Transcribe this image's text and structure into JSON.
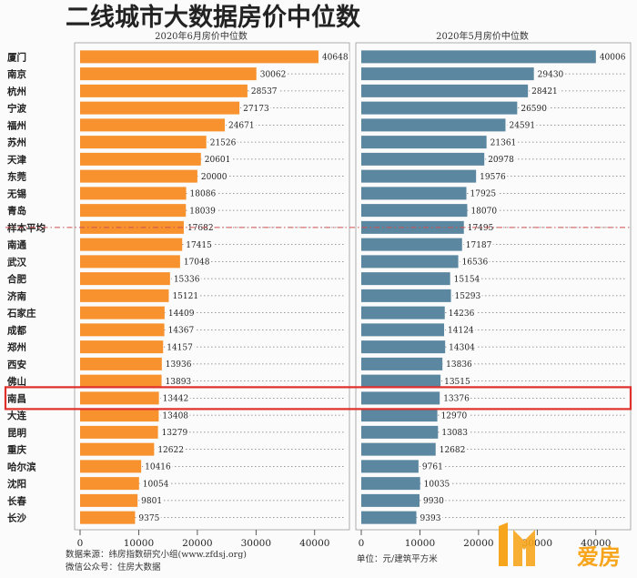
{
  "chart_data": {
    "type": "bar",
    "title": "二线城市大数据房价中位数",
    "categories": [
      "厦门",
      "南京",
      "杭州",
      "宁波",
      "福州",
      "苏州",
      "天津",
      "东莞",
      "无锡",
      "青岛",
      "样本平均",
      "南通",
      "武汉",
      "合肥",
      "济南",
      "石家庄",
      "成都",
      "郑州",
      "西安",
      "佛山",
      "南昌",
      "大连",
      "昆明",
      "重庆",
      "哈尔滨",
      "沈阳",
      "长春",
      "长沙"
    ],
    "series": [
      {
        "name": "2020年6月房价中位数",
        "color": "#f7922e",
        "values": [
          40648,
          30062,
          28537,
          27173,
          24671,
          21526,
          20601,
          20000,
          18086,
          18039,
          17682,
          17415,
          17048,
          15336,
          15121,
          14409,
          14367,
          14157,
          13936,
          13893,
          13442,
          13408,
          13279,
          12622,
          10416,
          10054,
          9801,
          9375
        ]
      },
      {
        "name": "2020年5月房价中位数",
        "color": "#5b87a0",
        "values": [
          40006,
          29430,
          28421,
          26590,
          24591,
          21361,
          20978,
          19576,
          17925,
          18070,
          17495,
          17187,
          16536,
          15154,
          15293,
          14236,
          14124,
          14304,
          13836,
          13515,
          13376,
          12970,
          13083,
          12682,
          9761,
          10035,
          9930,
          9393
        ]
      }
    ],
    "xlim": [
      0,
      45000
    ],
    "xticks": [
      0,
      10000,
      20000,
      30000,
      40000
    ],
    "average_category": "样本平均",
    "highlight_category": "南昌",
    "highlight_color": "#e0302b",
    "average_line_color": "#d05050"
  },
  "footer": {
    "source": "数据来源：纬房指数研究小组(www.zfdsj.org)",
    "wechat": "微信公众号：住房大数据",
    "unit": "单位：元/建筑平方米"
  },
  "logo": {
    "text": "爱房",
    "color": "#f7a51c"
  }
}
